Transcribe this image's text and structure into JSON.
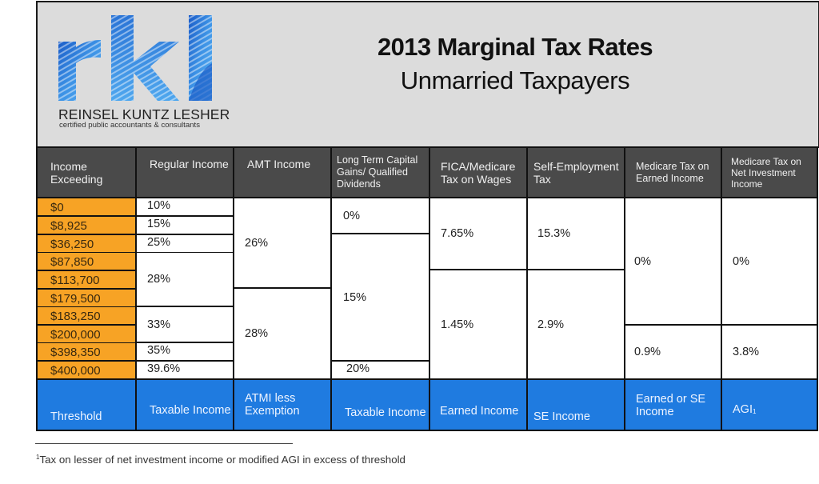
{
  "header": {
    "title": "2013 Marginal Tax Rates",
    "subtitle": "Unmarried Taxpayers"
  },
  "logo": {
    "mark": "rkl",
    "name": "REINSEL KUNTZ LESHER",
    "tagline": "certified public accountants & consultants"
  },
  "colors": {
    "income_column": "#f7a325",
    "column_header": "#4a4a4a",
    "footer_row": "#1f7be0",
    "panel": "#dcdcdc"
  },
  "columns": [
    {
      "header": "Income Exceeding",
      "basis": "Threshold"
    },
    {
      "header": "Regular Income",
      "basis": "Taxable Income"
    },
    {
      "header": "AMT Income",
      "basis": "ATMI less Exemption"
    },
    {
      "header": "Long Term Capital Gains/ Qualified Dividends",
      "basis": "Taxable Income"
    },
    {
      "header": "FICA/Medicare Tax on Wages",
      "basis": "Earned Income"
    },
    {
      "header": "Self-Employment Tax",
      "basis": "SE Income"
    },
    {
      "header": "Medicare Tax on Earned Income",
      "basis": "Earned or SE Income"
    },
    {
      "header": "Medicare Tax on Net Investment Income",
      "basis": "AGI",
      "basis_footnote": "1"
    }
  ],
  "thresholds": [
    "$0",
    "$8,925",
    "$36,250",
    "$87,850",
    "$113,700",
    "$179,500",
    "$183,250",
    "$200,000",
    "$398,350",
    "$400,000"
  ],
  "rates": {
    "regular": [
      "10%",
      "15%",
      "25%",
      "28%",
      "33%",
      "35%",
      "39.6%"
    ],
    "amt": [
      "26%",
      "28%"
    ],
    "ltcg": [
      "0%",
      "15%",
      "20%"
    ],
    "fica": [
      "7.65%",
      "1.45%"
    ],
    "se": [
      "15.3%",
      "2.9%"
    ],
    "medicare_earned": [
      "0%",
      "0.9%"
    ],
    "medicare_nii": [
      "0%",
      "3.8%"
    ]
  },
  "footnote": {
    "marker": "1",
    "text": "Tax on lesser of net investment income or modified AGI in excess of threshold"
  }
}
